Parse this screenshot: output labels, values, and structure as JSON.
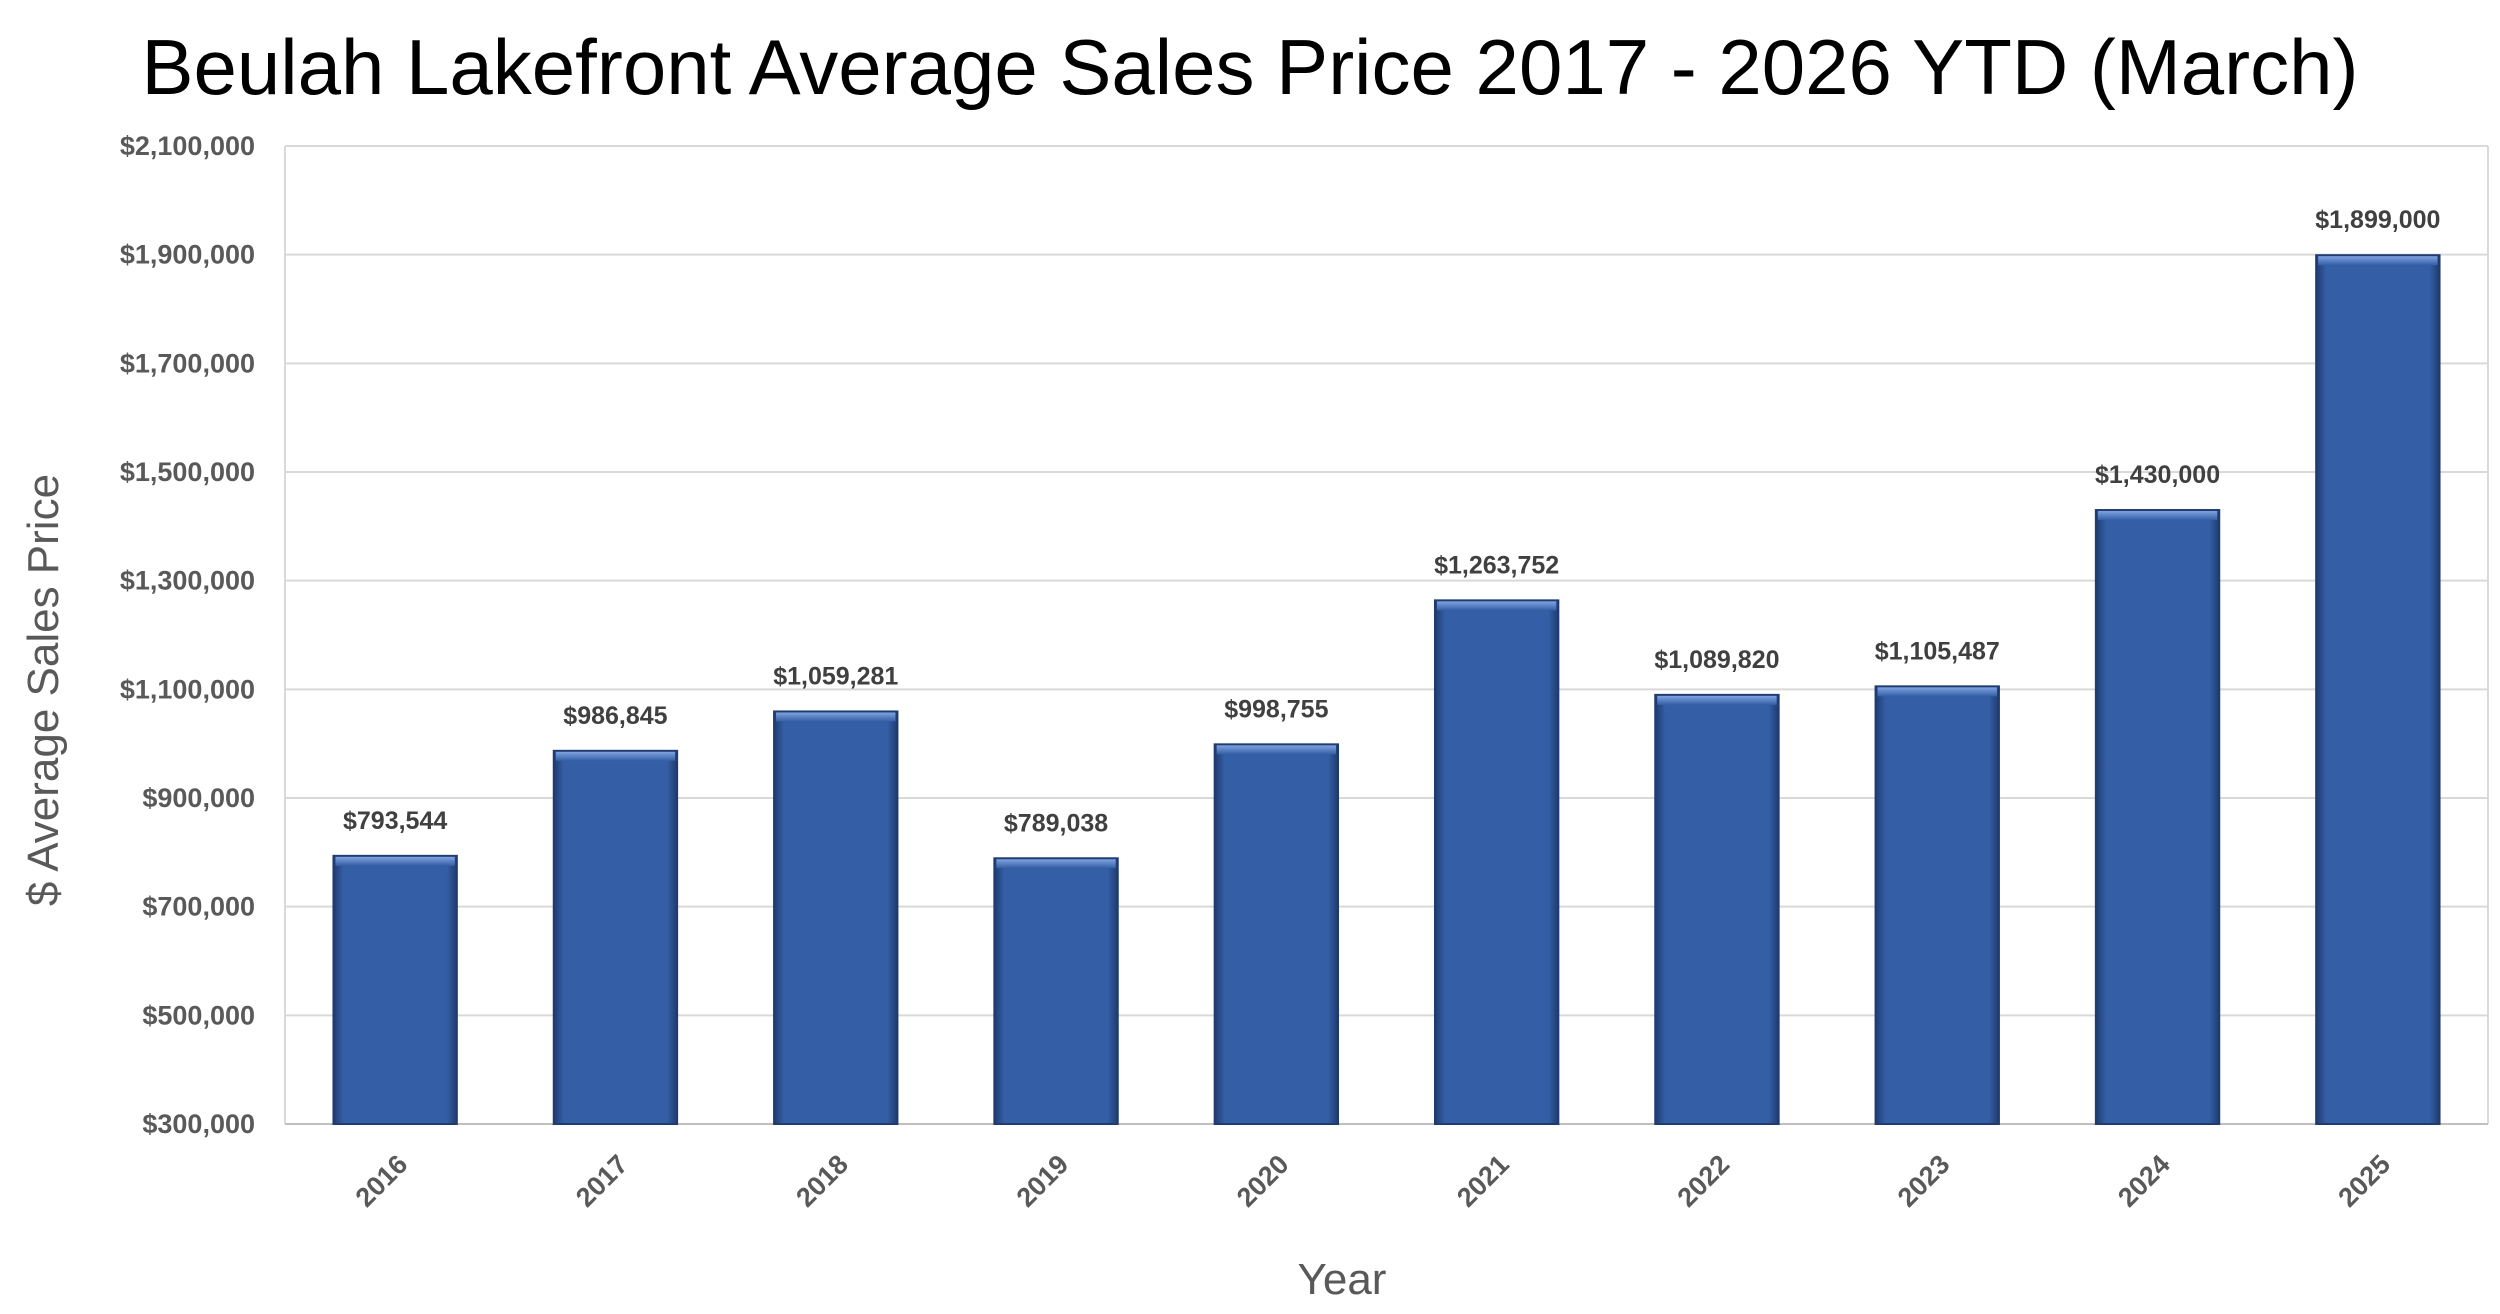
{
  "chart_data": {
    "type": "bar",
    "title": "Beulah Lakefront Average Sales Price 2017 - 2026 YTD (March)",
    "xlabel": "Year",
    "ylabel": "$ Average Sales Price",
    "categories": [
      "2016",
      "2017",
      "2018",
      "2019",
      "2020",
      "2021",
      "2022",
      "2023",
      "2024",
      "2025"
    ],
    "values": [
      793544,
      986845,
      1059281,
      789038,
      998755,
      1263752,
      1089820,
      1105487,
      1430000,
      1899000
    ],
    "data_labels": [
      "$793,544",
      "$986,845",
      "$1,059,281",
      "$789,038",
      "$998,755",
      "$1,263,752",
      "$1,089,820",
      "$1,105,487",
      "$1,430,000",
      "$1,899,000"
    ],
    "ylim": [
      300000,
      2100000
    ],
    "yticks": [
      300000,
      500000,
      700000,
      900000,
      1100000,
      1300000,
      1500000,
      1700000,
      1900000,
      2100000
    ],
    "ytick_labels": [
      "$300,000",
      "$500,000",
      "$700,000",
      "$900,000",
      "$1,100,000",
      "$1,300,000",
      "$1,500,000",
      "$1,700,000",
      "$1,900,000",
      "$2,100,000"
    ],
    "grid": true,
    "legend": "none",
    "bar_color": "#345EA5",
    "bar_highlight_color": "#7FA3E0",
    "bar_edge_color": "#1F3B70",
    "grid_color": "#D9D9D9"
  }
}
